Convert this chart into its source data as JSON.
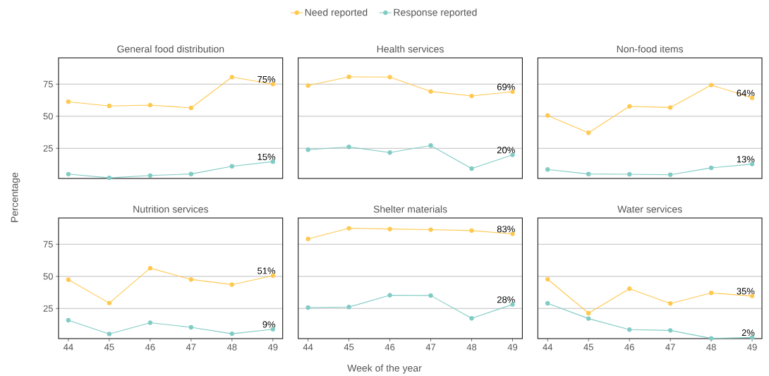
{
  "chart_data": [
    {
      "type": "line",
      "title": "General food distribution",
      "ylabel": "Percentage",
      "legend": "top",
      "grid": "y",
      "marker": "circle",
      "line_style": "solid",
      "tick_labels": "y",
      "x": [
        44,
        45,
        46,
        47,
        48,
        49
      ],
      "xlim": [
        43.76,
        49.24
      ],
      "xticks": [
        44,
        45,
        46,
        47,
        48,
        49
      ],
      "ylim": [
        1.5,
        95.5
      ],
      "yticks": [
        25,
        50,
        75
      ],
      "series": [
        {
          "name": "Need reported",
          "color": "#ffc84f",
          "values": [
            61.3,
            58,
            58.7,
            56.5,
            80.5,
            75
          ],
          "value_labels": [
            null,
            null,
            null,
            null,
            null,
            "75%"
          ]
        },
        {
          "name": "Response reported",
          "color": "#80cbc4",
          "values": [
            4.9,
            2,
            3.8,
            5,
            11,
            14.6
          ],
          "value_labels": [
            null,
            null,
            null,
            null,
            null,
            "15%"
          ]
        }
      ]
    },
    {
      "type": "line",
      "title": "Health services",
      "grid": "y",
      "marker": "circle",
      "line_style": "solid",
      "tick_labels": false,
      "x": [
        44,
        45,
        46,
        47,
        48,
        49
      ],
      "xlim": [
        43.76,
        49.24
      ],
      "xticks": [
        44,
        45,
        46,
        47,
        48,
        49
      ],
      "ylim": [
        1.5,
        95.5
      ],
      "yticks": [
        25,
        50,
        75
      ],
      "series": [
        {
          "color": "#ffc84f",
          "values": [
            73.9,
            80.7,
            80.5,
            69.3,
            65.8,
            69.1
          ],
          "value_labels": [
            null,
            null,
            null,
            null,
            null,
            "69%"
          ]
        },
        {
          "color": "#80cbc4",
          "values": [
            23.9,
            26.1,
            21.7,
            27.2,
            9.2,
            19.9
          ],
          "value_labels": [
            null,
            null,
            null,
            null,
            null,
            "20%"
          ]
        }
      ]
    },
    {
      "type": "line",
      "title": "Non-food items",
      "grid": "y",
      "marker": "circle",
      "line_style": "solid",
      "tick_labels": false,
      "x": [
        44,
        45,
        46,
        47,
        48,
        49
      ],
      "xlim": [
        43.76,
        49.24
      ],
      "xticks": [
        44,
        45,
        46,
        47,
        48,
        49
      ],
      "ylim": [
        1.5,
        95.5
      ],
      "yticks": [
        25,
        50,
        75
      ],
      "series": [
        {
          "color": "#ffc84f",
          "values": [
            50.6,
            37.1,
            57.7,
            56.8,
            74.3,
            64.3
          ],
          "value_labels": [
            null,
            null,
            null,
            null,
            null,
            "64%"
          ]
        },
        {
          "color": "#80cbc4",
          "values": [
            8.5,
            5,
            4.8,
            4.4,
            9.8,
            12.7
          ],
          "value_labels": [
            null,
            null,
            null,
            null,
            null,
            "13%"
          ]
        }
      ]
    },
    {
      "type": "line",
      "title": "Nutrition services",
      "grid": "y",
      "marker": "circle",
      "line_style": "solid",
      "x": [
        44,
        45,
        46,
        47,
        48,
        49
      ],
      "xlim": [
        43.76,
        49.24
      ],
      "xticks": [
        44,
        45,
        46,
        47,
        48,
        49
      ],
      "ylim": [
        1.5,
        95.5
      ],
      "yticks": [
        25,
        50,
        75
      ],
      "series": [
        {
          "color": "#ffc84f",
          "values": [
            47.4,
            29.2,
            56.4,
            47.6,
            43.6,
            50.6
          ],
          "value_labels": [
            null,
            null,
            null,
            null,
            null,
            "51%"
          ]
        },
        {
          "color": "#80cbc4",
          "values": [
            15.8,
            5.1,
            13.9,
            10.3,
            5.3,
            8.8
          ],
          "value_labels": [
            null,
            null,
            null,
            null,
            null,
            "9%"
          ]
        }
      ]
    },
    {
      "type": "line",
      "title": "Shelter materials",
      "xlabel": "Week of the year",
      "grid": "y",
      "marker": "circle",
      "line_style": "solid",
      "tick_labels": "x",
      "x": [
        44,
        45,
        46,
        47,
        48,
        49
      ],
      "xlim": [
        43.76,
        49.24
      ],
      "xticks": [
        44,
        45,
        46,
        47,
        48,
        49
      ],
      "ylim": [
        1.5,
        95.5
      ],
      "yticks": [
        25,
        50,
        75
      ],
      "series": [
        {
          "color": "#ffc84f",
          "values": [
            79.2,
            87.5,
            86.9,
            86.4,
            85.7,
            83.1
          ],
          "value_labels": [
            null,
            null,
            null,
            null,
            null,
            "83%"
          ]
        },
        {
          "color": "#80cbc4",
          "values": [
            25.7,
            26.1,
            35.3,
            35.1,
            17.3,
            28.1
          ],
          "value_labels": [
            null,
            null,
            null,
            null,
            null,
            "28%"
          ]
        }
      ]
    },
    {
      "type": "line",
      "title": "Water services",
      "grid": "y",
      "marker": "circle",
      "line_style": "solid",
      "tick_labels": "x",
      "x": [
        44,
        45,
        46,
        47,
        48,
        49
      ],
      "xlim": [
        43.76,
        49.24
      ],
      "xticks": [
        44,
        45,
        46,
        47,
        48,
        49
      ],
      "ylim": [
        1.5,
        95.5
      ],
      "yticks": [
        25,
        50,
        75
      ],
      "series": [
        {
          "color": "#ffc84f",
          "values": [
            47.8,
            21.3,
            40.4,
            28.9,
            37.1,
            34.7
          ],
          "value_labels": [
            null,
            null,
            null,
            null,
            null,
            "35%"
          ]
        },
        {
          "color": "#80cbc4",
          "values": [
            29,
            17.1,
            8.5,
            7.9,
            1.7,
            2.4
          ],
          "value_labels": [
            null,
            null,
            null,
            null,
            null,
            "2%"
          ]
        }
      ]
    }
  ]
}
